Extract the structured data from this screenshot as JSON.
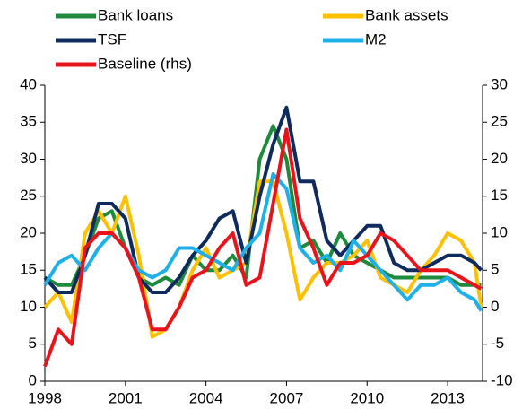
{
  "chart_data": {
    "type": "line",
    "x": [
      1998,
      1998.5,
      1999,
      1999.5,
      2000,
      2000.5,
      2001,
      2001.5,
      2002,
      2002.5,
      2003,
      2003.5,
      2004,
      2004.5,
      2005,
      2005.5,
      2006,
      2006.5,
      2007,
      2007.5,
      2008,
      2008.5,
      2009,
      2009.5,
      2010,
      2010.5,
      2011,
      2011.5,
      2012,
      2012.5,
      2013,
      2013.5,
      2014,
      2014.25
    ],
    "xlim": [
      1998,
      2014.3
    ],
    "xticks": [
      1998,
      2001,
      2004,
      2007,
      2010,
      2013
    ],
    "ylim": [
      0,
      40
    ],
    "yticks": [
      0,
      5,
      10,
      15,
      20,
      25,
      30,
      35,
      40
    ],
    "y2lim": [
      -10,
      30
    ],
    "y2ticks": [
      -10,
      -5,
      0,
      5,
      10,
      15,
      20,
      25,
      30
    ],
    "series": [
      {
        "name": "Bank loans",
        "color": "#1e8a3c",
        "values": [
          14,
          13,
          13,
          17,
          22,
          23,
          18,
          14,
          13,
          14,
          13,
          17,
          15,
          15,
          17,
          14,
          30,
          34.5,
          30,
          18,
          19,
          16,
          20,
          17,
          16,
          15,
          14,
          14,
          14,
          14,
          14,
          13,
          13,
          13
        ]
      },
      {
        "name": "Bank assets",
        "color": "#ffc000",
        "values": [
          10,
          12,
          8,
          20,
          23,
          20,
          25,
          17,
          6,
          7,
          10,
          15,
          18,
          14,
          15,
          16,
          27,
          27,
          20,
          11,
          14,
          16,
          16,
          17,
          19,
          14,
          13,
          12,
          15,
          17,
          20,
          19,
          16,
          10
        ]
      },
      {
        "name": "TSF",
        "color": "#0f2a5c",
        "values": [
          14,
          12,
          12,
          17,
          24,
          24,
          22,
          14,
          12,
          12,
          14,
          17,
          19,
          22,
          23,
          16,
          25,
          32,
          37,
          27,
          27,
          19,
          17,
          19,
          21,
          21,
          16,
          15,
          15,
          16,
          17,
          17,
          16,
          15
        ]
      },
      {
        "name": "M2",
        "color": "#1fb0e8",
        "values": [
          13,
          16,
          17,
          15,
          18,
          20,
          18,
          15,
          14,
          15,
          18,
          18,
          17,
          16,
          15,
          18,
          20,
          28,
          26,
          18,
          16,
          17,
          15,
          19,
          17,
          15,
          13,
          11,
          13,
          13,
          14,
          12,
          11,
          9.5
        ]
      },
      {
        "name": "Baseline (rhs)",
        "color": "#e8141c",
        "axis": "y2",
        "values": [
          -8,
          -3,
          -5,
          8,
          10,
          10,
          8,
          4,
          -3,
          -3,
          0,
          4,
          5,
          8,
          10,
          3,
          4,
          14,
          24,
          12,
          8,
          3,
          6,
          6,
          7,
          10,
          9,
          7,
          5,
          5,
          5,
          4,
          3,
          2.5
        ]
      }
    ]
  }
}
